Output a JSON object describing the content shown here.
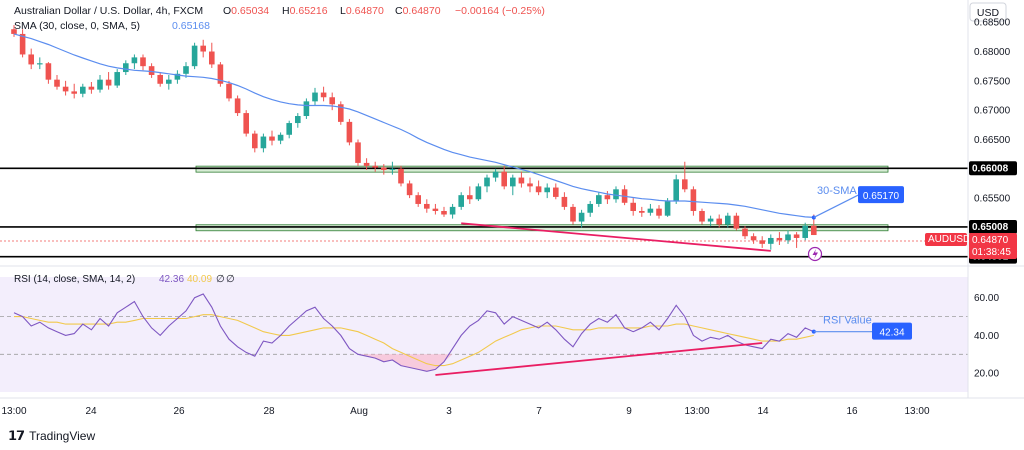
{
  "header": {
    "title": "Australian Dollar / U.S. Dollar, 4h, FXCM",
    "ohlc": [
      {
        "k": "O",
        "v": "0.65034"
      },
      {
        "k": "H",
        "v": "0.65216"
      },
      {
        "k": "L",
        "v": "0.64870"
      },
      {
        "k": "C",
        "v": "0.64870"
      }
    ],
    "change": "−0.00164 (−0.25%)",
    "sma_legend": "SMA (30, close, 0, SMA, 5)",
    "sma_value": "0.65168",
    "rsi_legend": "RSI (14, close, SMA, 14, 2)",
    "rsi_values": [
      "42.36",
      "40.09",
      "∅",
      "∅"
    ]
  },
  "currency": "USD",
  "price_axis_ticks": [
    "0.68500",
    "0.68000",
    "0.67500",
    "0.67000",
    "0.66500",
    "0.66000",
    "0.65500",
    "0.65000",
    "0.64500"
  ],
  "rsi_axis_ticks": [
    "60.00",
    "40.00",
    "20.00"
  ],
  "time_axis_ticks": [
    "13:00",
    "24",
    "26",
    "28",
    "Aug",
    "3",
    "7",
    "9",
    "13:00",
    "14",
    "16",
    "13:00"
  ],
  "labels": {
    "level_66008": "0.66008",
    "level_65008": "0.65008",
    "level_64501": "0.64501",
    "symbol": "AUDUSD",
    "last_price": "0.64870",
    "countdown": "01:38:45",
    "sma_badge": "0.65170",
    "sma_annotation": "30-SMA",
    "rsi_badge": "42.34",
    "rsi_annotation": "RSI Value"
  },
  "footer": {
    "brand": "TradingView"
  },
  "colors": {
    "up": "#26a69a",
    "down": "#ef5350",
    "sma": "#5b8def",
    "rsi": "#7e57c2",
    "rsi_ma": "#f2c94c",
    "trendline": "#e91e63",
    "zone_fill": "#d7ecd5",
    "badge_blue": "#2962ff",
    "badge_red": "#f23645"
  },
  "chart_data": {
    "type": "candlestick",
    "symbol": "AUDUSD",
    "timeframe": "4h",
    "y_range": [
      0.6441,
      0.6864
    ],
    "rsi_range": [
      10,
      71
    ],
    "horizontal_levels": [
      0.66008,
      0.65008,
      0.64501
    ],
    "zones": [
      [
        0.65985,
        0.66045
      ],
      [
        0.64975,
        0.65045
      ]
    ],
    "candles": [
      [
        0.6838,
        0.6845,
        0.6825,
        0.683
      ],
      [
        0.683,
        0.6838,
        0.679,
        0.6795
      ],
      [
        0.6795,
        0.6805,
        0.677,
        0.6778
      ],
      [
        0.6778,
        0.679,
        0.677,
        0.678
      ],
      [
        0.678,
        0.6782,
        0.6745,
        0.6752
      ],
      [
        0.6752,
        0.676,
        0.6735,
        0.674
      ],
      [
        0.674,
        0.675,
        0.6725,
        0.6732
      ],
      [
        0.6732,
        0.6745,
        0.672,
        0.6728
      ],
      [
        0.6728,
        0.6745,
        0.6722,
        0.674
      ],
      [
        0.674,
        0.6748,
        0.6728,
        0.6735
      ],
      [
        0.6735,
        0.676,
        0.673,
        0.6752
      ],
      [
        0.6752,
        0.6765,
        0.6735,
        0.6742
      ],
      [
        0.6742,
        0.677,
        0.6738,
        0.6765
      ],
      [
        0.6765,
        0.6785,
        0.676,
        0.678
      ],
      [
        0.678,
        0.6795,
        0.677,
        0.679
      ],
      [
        0.679,
        0.6795,
        0.6768,
        0.6775
      ],
      [
        0.6775,
        0.678,
        0.6755,
        0.676
      ],
      [
        0.676,
        0.6765,
        0.674,
        0.6745
      ],
      [
        0.6745,
        0.676,
        0.6735,
        0.6752
      ],
      [
        0.6752,
        0.6768,
        0.6745,
        0.6762
      ],
      [
        0.6762,
        0.6782,
        0.6755,
        0.6775
      ],
      [
        0.6775,
        0.6815,
        0.677,
        0.681
      ],
      [
        0.681,
        0.682,
        0.679,
        0.68
      ],
      [
        0.68,
        0.6815,
        0.6772,
        0.6778
      ],
      [
        0.6778,
        0.6782,
        0.674,
        0.6745
      ],
      [
        0.6745,
        0.675,
        0.6715,
        0.672
      ],
      [
        0.672,
        0.6725,
        0.669,
        0.6695
      ],
      [
        0.6695,
        0.67,
        0.6655,
        0.666
      ],
      [
        0.666,
        0.6665,
        0.6628,
        0.6635
      ],
      [
        0.6635,
        0.666,
        0.6628,
        0.6655
      ],
      [
        0.6655,
        0.6665,
        0.664,
        0.6648
      ],
      [
        0.6648,
        0.6662,
        0.6642,
        0.6658
      ],
      [
        0.6658,
        0.6682,
        0.6652,
        0.6678
      ],
      [
        0.6678,
        0.6695,
        0.667,
        0.669
      ],
      [
        0.669,
        0.672,
        0.6685,
        0.6715
      ],
      [
        0.6715,
        0.6738,
        0.6708,
        0.673
      ],
      [
        0.673,
        0.674,
        0.6715,
        0.6722
      ],
      [
        0.6722,
        0.673,
        0.67,
        0.671
      ],
      [
        0.671,
        0.6715,
        0.6675,
        0.668
      ],
      [
        0.668,
        0.6685,
        0.664,
        0.6645
      ],
      [
        0.6645,
        0.665,
        0.6605,
        0.661
      ],
      [
        0.661,
        0.6618,
        0.6598,
        0.6605
      ],
      [
        0.6605,
        0.6612,
        0.6595,
        0.6602
      ],
      [
        0.6602,
        0.6608,
        0.659,
        0.6598
      ],
      [
        0.6598,
        0.6612,
        0.659,
        0.66
      ],
      [
        0.66,
        0.6605,
        0.657,
        0.6575
      ],
      [
        0.6575,
        0.658,
        0.655,
        0.6555
      ],
      [
        0.6555,
        0.656,
        0.6535,
        0.654
      ],
      [
        0.654,
        0.6548,
        0.6525,
        0.6532
      ],
      [
        0.6532,
        0.654,
        0.6522,
        0.6528
      ],
      [
        0.6528,
        0.6535,
        0.6518,
        0.6522
      ],
      [
        0.6522,
        0.654,
        0.6515,
        0.6535
      ],
      [
        0.6535,
        0.656,
        0.653,
        0.6555
      ],
      [
        0.6555,
        0.657,
        0.654,
        0.6548
      ],
      [
        0.6548,
        0.6575,
        0.6545,
        0.657
      ],
      [
        0.657,
        0.659,
        0.656,
        0.6585
      ],
      [
        0.6585,
        0.66,
        0.6578,
        0.6595
      ],
      [
        0.6595,
        0.6605,
        0.6565,
        0.657
      ],
      [
        0.657,
        0.659,
        0.6555,
        0.6585
      ],
      [
        0.6585,
        0.6595,
        0.6568,
        0.6575
      ],
      [
        0.6575,
        0.6585,
        0.656,
        0.657
      ],
      [
        0.657,
        0.658,
        0.6555,
        0.656
      ],
      [
        0.656,
        0.6575,
        0.655,
        0.6568
      ],
      [
        0.6568,
        0.6575,
        0.6548,
        0.6552
      ],
      [
        0.6552,
        0.656,
        0.653,
        0.6535
      ],
      [
        0.6535,
        0.654,
        0.6505,
        0.651
      ],
      [
        0.651,
        0.653,
        0.65,
        0.6525
      ],
      [
        0.6525,
        0.6545,
        0.6518,
        0.654
      ],
      [
        0.654,
        0.656,
        0.6535,
        0.6555
      ],
      [
        0.6555,
        0.6562,
        0.654,
        0.6548
      ],
      [
        0.6548,
        0.657,
        0.6542,
        0.6565
      ],
      [
        0.6565,
        0.6572,
        0.6538,
        0.6542
      ],
      [
        0.6542,
        0.655,
        0.652,
        0.6528
      ],
      [
        0.6528,
        0.6535,
        0.6518,
        0.6525
      ],
      [
        0.6525,
        0.654,
        0.652,
        0.6532
      ],
      [
        0.6532,
        0.6538,
        0.6515,
        0.652
      ],
      [
        0.652,
        0.655,
        0.6518,
        0.6545
      ],
      [
        0.6545,
        0.659,
        0.654,
        0.6582
      ],
      [
        0.6582,
        0.6612,
        0.656,
        0.6565
      ],
      [
        0.6565,
        0.657,
        0.652,
        0.6528
      ],
      [
        0.6528,
        0.6532,
        0.6505,
        0.651
      ],
      [
        0.651,
        0.652,
        0.6502,
        0.6515
      ],
      [
        0.6515,
        0.6522,
        0.65,
        0.6505
      ],
      [
        0.6505,
        0.6525,
        0.65,
        0.652
      ],
      [
        0.652,
        0.6525,
        0.6495,
        0.6498
      ],
      [
        0.6498,
        0.6502,
        0.648,
        0.6485
      ],
      [
        0.6485,
        0.649,
        0.6472,
        0.6478
      ],
      [
        0.6478,
        0.6485,
        0.6465,
        0.6472
      ],
      [
        0.6472,
        0.6488,
        0.6462,
        0.6482
      ],
      [
        0.6482,
        0.6492,
        0.647,
        0.6478
      ],
      [
        0.6478,
        0.6495,
        0.6472,
        0.6488
      ],
      [
        0.6488,
        0.6492,
        0.6465,
        0.6482
      ],
      [
        0.6482,
        0.6508,
        0.6478,
        0.6503
      ],
      [
        0.6503,
        0.6522,
        0.6487,
        0.6487
      ]
    ],
    "sma30": [
      0.683,
      0.6826,
      0.6822,
      0.6817,
      0.6812,
      0.6806,
      0.68,
      0.6794,
      0.6789,
      0.6784,
      0.6779,
      0.6775,
      0.6772,
      0.677,
      0.6768,
      0.6767,
      0.6766,
      0.6764,
      0.6762,
      0.676,
      0.6758,
      0.6757,
      0.6756,
      0.6754,
      0.6751,
      0.6747,
      0.6742,
      0.6736,
      0.6729,
      0.6723,
      0.6718,
      0.6714,
      0.6711,
      0.6709,
      0.6708,
      0.6708,
      0.6708,
      0.6707,
      0.6705,
      0.6702,
      0.6697,
      0.6691,
      0.6685,
      0.6679,
      0.6673,
      0.6667,
      0.666,
      0.6652,
      0.6645,
      0.6639,
      0.6633,
      0.6628,
      0.6624,
      0.662,
      0.6617,
      0.6614,
      0.6611,
      0.6607,
      0.6603,
      0.6599,
      0.6595,
      0.659,
      0.6585,
      0.658,
      0.6575,
      0.657,
      0.6566,
      0.6563,
      0.656,
      0.6557,
      0.6555,
      0.6553,
      0.6551,
      0.6549,
      0.6548,
      0.6546,
      0.6545,
      0.6545,
      0.6545,
      0.6544,
      0.6543,
      0.6542,
      0.6541,
      0.654,
      0.6538,
      0.6536,
      0.6533,
      0.653,
      0.6527,
      0.6524,
      0.6522,
      0.652,
      0.6518,
      0.6517
    ],
    "rsi": [
      52,
      50,
      45,
      47,
      44,
      42,
      40,
      41,
      46,
      43,
      49,
      45,
      52,
      55,
      58,
      50,
      44,
      40,
      45,
      49,
      53,
      60,
      62,
      55,
      45,
      38,
      34,
      31,
      29,
      37,
      36,
      40,
      45,
      49,
      53,
      55,
      49,
      45,
      40,
      33,
      30,
      29,
      28,
      26,
      27,
      24,
      23,
      22,
      21,
      22,
      26,
      33,
      40,
      45,
      48,
      53,
      52,
      46,
      50,
      48,
      46,
      44,
      47,
      43,
      38,
      34,
      41,
      46,
      49,
      47,
      51,
      44,
      42,
      44,
      47,
      43,
      49,
      56,
      50,
      40,
      37,
      39,
      38,
      40,
      37,
      35,
      34,
      33,
      38,
      37,
      41,
      39,
      44,
      42
    ],
    "rsi_ma": [
      50,
      50,
      49,
      48,
      47,
      47,
      46,
      46,
      46,
      46,
      46,
      46,
      47,
      47,
      48,
      49,
      49,
      49,
      49,
      49,
      49,
      50,
      51,
      51,
      50,
      49,
      48,
      46,
      44,
      42,
      41,
      40,
      40,
      41,
      42,
      43,
      44,
      44,
      44,
      43,
      42,
      40,
      38,
      36,
      33,
      31,
      29,
      27,
      25,
      24,
      24,
      25,
      27,
      29,
      31,
      34,
      37,
      39,
      41,
      43,
      44,
      45,
      45,
      45,
      44,
      43,
      43,
      43,
      44,
      44,
      44,
      44,
      44,
      44,
      45,
      45,
      45,
      46,
      46,
      45,
      44,
      43,
      42,
      41,
      40,
      39,
      38,
      37,
      37,
      37,
      38,
      38,
      39,
      40
    ]
  }
}
